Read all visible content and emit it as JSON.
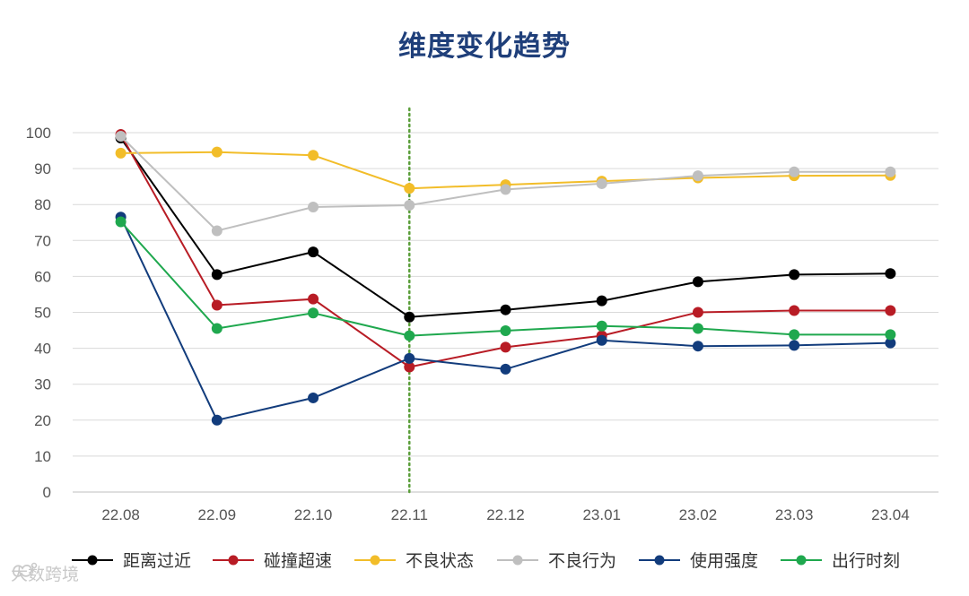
{
  "chart_data": {
    "type": "line",
    "title": "维度变化趋势",
    "xlabel": "",
    "ylabel": "",
    "ylim": [
      0,
      100
    ],
    "yticks": [
      0,
      10,
      20,
      30,
      40,
      50,
      60,
      70,
      80,
      90,
      100
    ],
    "categories": [
      "22.08",
      "22.09",
      "22.10",
      "22.11",
      "22.12",
      "23.01",
      "23.02",
      "23.03",
      "23.04"
    ],
    "reference_line": {
      "category": "22.11",
      "style": "dotted",
      "color": "#5a9e3a"
    },
    "legend_position": "bottom",
    "series": [
      {
        "name": "距离过近",
        "color": "#000000",
        "values": [
          98.5,
          60.5,
          66.8,
          48.7,
          50.7,
          53.2,
          58.5,
          60.5,
          60.8
        ]
      },
      {
        "name": "碰撞超速",
        "color": "#b81c25",
        "values": [
          99.5,
          52.0,
          53.7,
          34.8,
          40.3,
          43.5,
          50.0,
          50.5,
          50.5
        ]
      },
      {
        "name": "不良状态",
        "color": "#f2bd29",
        "values": [
          94.3,
          94.6,
          93.7,
          84.5,
          85.5,
          86.5,
          87.4,
          88.0,
          88.1
        ]
      },
      {
        "name": "不良行为",
        "color": "#bfbfbf",
        "values": [
          99.0,
          72.7,
          79.3,
          79.8,
          84.2,
          85.8,
          88.0,
          89.1,
          89.1
        ]
      },
      {
        "name": "使用强度",
        "color": "#123c7c",
        "values": [
          76.5,
          20.0,
          26.2,
          37.2,
          34.2,
          42.2,
          40.6,
          40.8,
          41.5
        ]
      },
      {
        "name": "出行时刻",
        "color": "#1fa84e",
        "values": [
          75.2,
          45.5,
          49.8,
          43.5,
          44.9,
          46.2,
          45.5,
          43.8,
          43.8
        ]
      }
    ]
  },
  "watermark": {
    "text": "大数跨境"
  }
}
